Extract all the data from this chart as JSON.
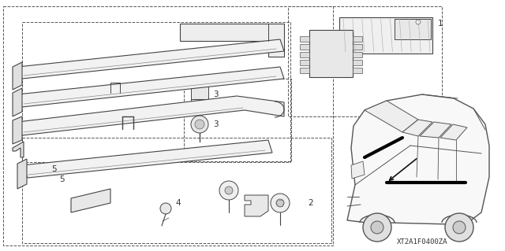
{
  "background_color": "#ffffff",
  "fig_width": 6.4,
  "fig_height": 3.19,
  "dpi": 100,
  "callout_code": "XT2A1F0400ZA",
  "line_color": "#555555",
  "dark_color": "#333333",
  "text_color": "#333333",
  "label_fontsize": 7.5,
  "code_fontsize": 6.5,
  "lw_main": 0.8,
  "lw_thin": 0.5,
  "lw_thick": 1.5,
  "dash_lw": 0.7
}
